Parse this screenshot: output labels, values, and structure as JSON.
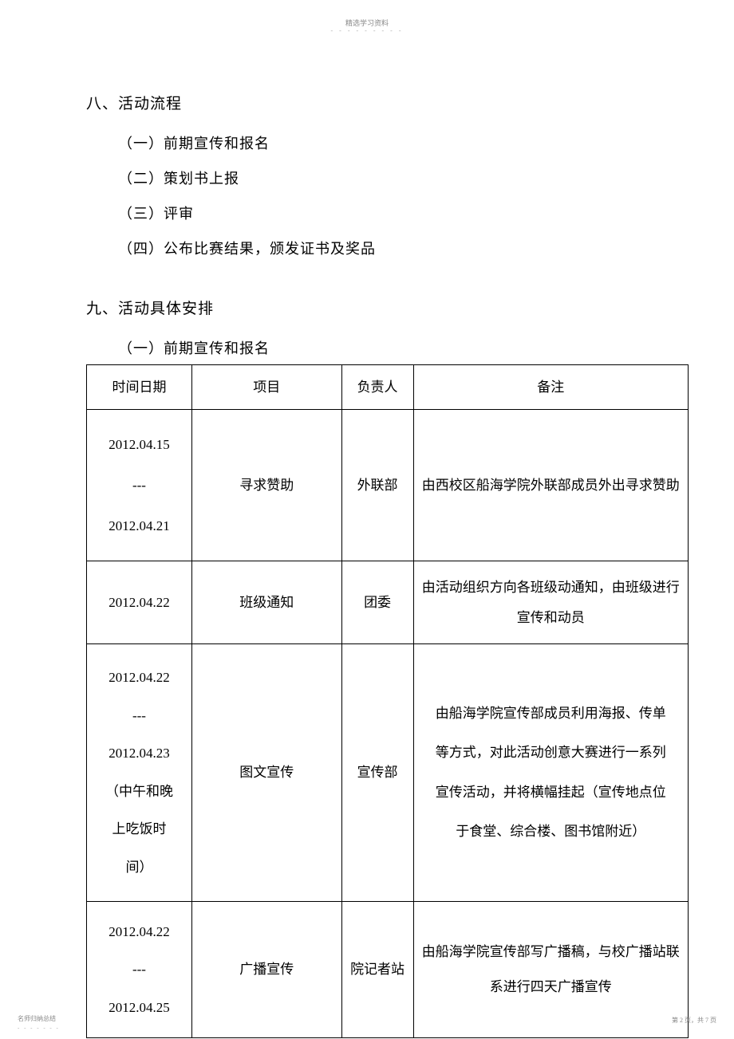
{
  "header": {
    "title": "精选学习资料",
    "dots": "- - - - - - - - -"
  },
  "section8": {
    "title": "八、活动流程",
    "items": [
      "（一）前期宣传和报名",
      "（二）策划书上报",
      "（三）评审",
      "（四）公布比赛结果，颁发证书及奖品"
    ]
  },
  "section9": {
    "title": "九、活动具体安排",
    "subtitle": "（一）前期宣传和报名"
  },
  "table": {
    "headers": {
      "date": "时间日期",
      "item": "项目",
      "person": "负责人",
      "note": "备注"
    },
    "rows": [
      {
        "date": "2012.04.15\n---\n2012.04.21",
        "item": "寻求赞助",
        "person": "外联部",
        "note": "由西校区船海学院外联部成员外出寻求赞助"
      },
      {
        "date": "2012.04.22",
        "item": "班级通知",
        "person": "团委",
        "note": "由活动组织方向各班级动通知，由班级进行宣传和动员"
      },
      {
        "date": "2012.04.22\n---\n2012.04.23\n（中午和晚\n上吃饭时\n间）",
        "item": "图文宣传",
        "person": "宣传部",
        "note": "由船海学院宣传部成员利用海报、传单\n等方式，对此活动创意大赛进行一系列\n宣传活动，并将横幅挂起（宣传地点位\n于食堂、综合楼、图书馆附近）"
      },
      {
        "date": "2012.04.22\n---\n2012.04.25",
        "item": "广播宣传",
        "person": "院记者站",
        "note": "由船海学院宣传部写广播稿，与校广播站联系进行四天广播宣传"
      }
    ]
  },
  "footer": {
    "left": "名师归纳总结",
    "left_dots": "- - - - - - -",
    "right": "第 2 页，共 7 页"
  }
}
